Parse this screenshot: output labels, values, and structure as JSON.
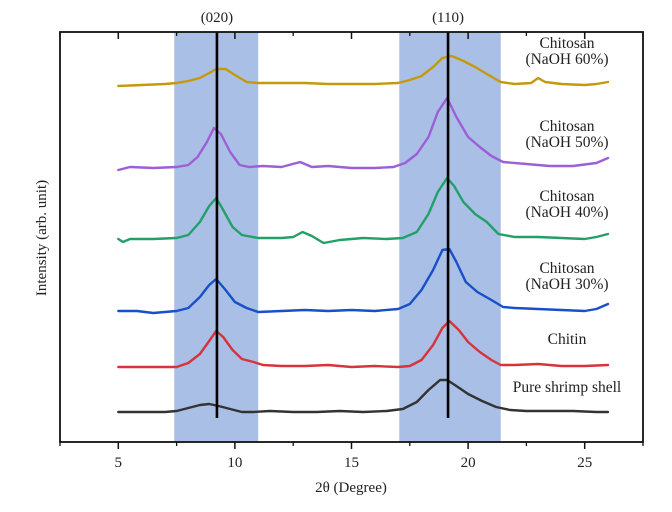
{
  "chart_data": {
    "type": "line",
    "title": "",
    "xlabel": "2θ (Degree)",
    "ylabel": "Intensity (arb. unit)",
    "xlim": [
      2.5,
      27.5
    ],
    "ylim": [
      0,
      410
    ],
    "x_ticks": [
      5,
      10,
      15,
      20,
      25
    ],
    "x_tick_labels": [
      "5",
      "10",
      "15",
      "20",
      "25"
    ],
    "x_minor_ticks": [
      2.5,
      7.5,
      12.5,
      17.5,
      22.5,
      27.5
    ],
    "y_ticks_shown": false,
    "grid": false,
    "legend": "inline-labels-right",
    "highlight_bands": [
      {
        "from": 7.4,
        "to": 11.0,
        "color": "#a9bfe6"
      },
      {
        "from": 17.05,
        "to": 21.4,
        "color": "#a9bfe6"
      }
    ],
    "reference_lines": [
      {
        "x": 9.23,
        "label": "(020)",
        "color": "#000000"
      },
      {
        "x": 19.14,
        "label": "(110)",
        "color": "#000000"
      }
    ],
    "series": [
      {
        "name": "Pure shrimp shell",
        "label_lines": [
          "Pure shrimp shell"
        ],
        "color": "#333333",
        "baseline": 30,
        "points": [
          [
            5.0,
            30
          ],
          [
            6.0,
            30
          ],
          [
            7.0,
            30
          ],
          [
            7.5,
            31
          ],
          [
            8.0,
            34
          ],
          [
            8.5,
            37
          ],
          [
            8.9,
            38
          ],
          [
            9.3,
            36
          ],
          [
            9.8,
            33
          ],
          [
            10.3,
            30
          ],
          [
            10.8,
            30
          ],
          [
            11.5,
            31
          ],
          [
            12.5,
            30
          ],
          [
            13.5,
            30
          ],
          [
            14.5,
            31
          ],
          [
            15.5,
            30
          ],
          [
            16.5,
            31
          ],
          [
            17.2,
            33
          ],
          [
            17.8,
            40
          ],
          [
            18.3,
            52
          ],
          [
            18.8,
            62
          ],
          [
            19.1,
            62
          ],
          [
            19.5,
            56
          ],
          [
            20.0,
            48
          ],
          [
            20.6,
            41
          ],
          [
            21.2,
            35
          ],
          [
            21.8,
            32
          ],
          [
            22.5,
            31
          ],
          [
            23.5,
            31
          ],
          [
            24.5,
            31
          ],
          [
            25.5,
            30
          ],
          [
            26.0,
            30
          ]
        ]
      },
      {
        "name": "Chitin",
        "label_lines": [
          "Chitin"
        ],
        "color": "#d6343a",
        "baseline": 75,
        "points": [
          [
            5.0,
            75
          ],
          [
            6.0,
            75
          ],
          [
            7.0,
            75
          ],
          [
            7.5,
            75
          ],
          [
            8.0,
            79
          ],
          [
            8.5,
            88
          ],
          [
            8.9,
            101
          ],
          [
            9.2,
            111
          ],
          [
            9.5,
            105
          ],
          [
            9.9,
            92
          ],
          [
            10.3,
            83
          ],
          [
            10.8,
            80
          ],
          [
            11.2,
            77
          ],
          [
            12.0,
            76
          ],
          [
            13.0,
            76
          ],
          [
            14.0,
            77
          ],
          [
            15.0,
            75
          ],
          [
            16.0,
            76
          ],
          [
            17.0,
            75
          ],
          [
            17.5,
            76
          ],
          [
            18.0,
            82
          ],
          [
            18.5,
            97
          ],
          [
            18.9,
            114
          ],
          [
            19.2,
            121
          ],
          [
            19.6,
            112
          ],
          [
            20.0,
            100
          ],
          [
            20.5,
            90
          ],
          [
            21.0,
            82
          ],
          [
            21.4,
            77
          ],
          [
            22.0,
            77
          ],
          [
            23.0,
            78
          ],
          [
            24.0,
            76
          ],
          [
            25.0,
            76
          ],
          [
            26.0,
            77
          ]
        ]
      },
      {
        "name": "Chitosan (NaOH 30%)",
        "label_lines": [
          "Chitosan",
          "(NaOH 30%)"
        ],
        "color": "#1750c8",
        "baseline": 131,
        "points": [
          [
            5.0,
            131
          ],
          [
            5.8,
            131
          ],
          [
            6.5,
            129
          ],
          [
            7.0,
            130
          ],
          [
            7.5,
            131
          ],
          [
            8.0,
            134
          ],
          [
            8.5,
            145
          ],
          [
            8.9,
            157
          ],
          [
            9.2,
            163
          ],
          [
            9.6,
            152
          ],
          [
            10.0,
            140
          ],
          [
            10.5,
            134
          ],
          [
            11.0,
            130
          ],
          [
            12.0,
            131
          ],
          [
            13.0,
            132
          ],
          [
            14.0,
            131
          ],
          [
            15.0,
            132
          ],
          [
            16.0,
            131
          ],
          [
            17.0,
            133
          ],
          [
            17.5,
            138
          ],
          [
            18.0,
            152
          ],
          [
            18.5,
            172
          ],
          [
            18.9,
            192
          ],
          [
            19.2,
            193
          ],
          [
            19.5,
            180
          ],
          [
            19.9,
            160
          ],
          [
            20.4,
            150
          ],
          [
            21.0,
            142
          ],
          [
            21.5,
            135
          ],
          [
            22.0,
            134
          ],
          [
            23.0,
            133
          ],
          [
            24.0,
            132
          ],
          [
            25.0,
            131
          ],
          [
            25.5,
            133
          ],
          [
            26.0,
            138
          ]
        ]
      },
      {
        "name": "Chitosan (NaOH 40%)",
        "label_lines": [
          "Chitosan",
          "(NaOH 40%)"
        ],
        "color": "#22a067",
        "baseline": 203,
        "points": [
          [
            5.0,
            203
          ],
          [
            5.2,
            200
          ],
          [
            5.5,
            203
          ],
          [
            6.5,
            203
          ],
          [
            7.5,
            204
          ],
          [
            8.0,
            207
          ],
          [
            8.5,
            220
          ],
          [
            8.9,
            236
          ],
          [
            9.2,
            244
          ],
          [
            9.5,
            232
          ],
          [
            9.9,
            215
          ],
          [
            10.3,
            207
          ],
          [
            11.0,
            204
          ],
          [
            12.0,
            204
          ],
          [
            12.5,
            205
          ],
          [
            12.9,
            210
          ],
          [
            13.3,
            206
          ],
          [
            13.8,
            199
          ],
          [
            14.5,
            202
          ],
          [
            15.5,
            204
          ],
          [
            16.5,
            203
          ],
          [
            17.2,
            204
          ],
          [
            17.8,
            210
          ],
          [
            18.3,
            228
          ],
          [
            18.7,
            250
          ],
          [
            19.1,
            264
          ],
          [
            19.4,
            256
          ],
          [
            19.8,
            240
          ],
          [
            20.3,
            228
          ],
          [
            20.8,
            220
          ],
          [
            21.3,
            208
          ],
          [
            22.0,
            205
          ],
          [
            23.0,
            205
          ],
          [
            24.0,
            204
          ],
          [
            25.0,
            203
          ],
          [
            25.5,
            205
          ],
          [
            26.0,
            208
          ]
        ]
      },
      {
        "name": "Chitosan (NaOH 50%)",
        "label_lines": [
          "Chitosan",
          "(NaOH 50%)"
        ],
        "color": "#9d5fd6",
        "baseline": 273,
        "points": [
          [
            5.0,
            272
          ],
          [
            5.5,
            275
          ],
          [
            6.5,
            274
          ],
          [
            7.5,
            275
          ],
          [
            8.0,
            277
          ],
          [
            8.4,
            285
          ],
          [
            8.8,
            300
          ],
          [
            9.1,
            314
          ],
          [
            9.4,
            308
          ],
          [
            9.8,
            290
          ],
          [
            10.2,
            277
          ],
          [
            10.6,
            275
          ],
          [
            11.2,
            276
          ],
          [
            12.0,
            275
          ],
          [
            12.8,
            280
          ],
          [
            13.3,
            275
          ],
          [
            14.0,
            276
          ],
          [
            15.0,
            274
          ],
          [
            16.0,
            274
          ],
          [
            16.8,
            275
          ],
          [
            17.3,
            279
          ],
          [
            17.8,
            288
          ],
          [
            18.3,
            305
          ],
          [
            18.7,
            330
          ],
          [
            19.1,
            344
          ],
          [
            19.5,
            325
          ],
          [
            20.0,
            305
          ],
          [
            20.5,
            295
          ],
          [
            21.0,
            286
          ],
          [
            21.5,
            280
          ],
          [
            22.5,
            278
          ],
          [
            23.5,
            276
          ],
          [
            24.5,
            276
          ],
          [
            25.5,
            279
          ],
          [
            26.0,
            284
          ]
        ]
      },
      {
        "name": "Chitosan (NaOH 60%)",
        "label_lines": [
          "Chitosan",
          "(NaOH 60%)"
        ],
        "color": "#c49a0c",
        "baseline": 356,
        "points": [
          [
            5.0,
            356
          ],
          [
            6.0,
            357
          ],
          [
            7.0,
            358
          ],
          [
            7.5,
            359
          ],
          [
            8.0,
            361
          ],
          [
            8.5,
            364
          ],
          [
            8.9,
            369
          ],
          [
            9.2,
            373
          ],
          [
            9.6,
            373
          ],
          [
            10.0,
            367
          ],
          [
            10.5,
            360
          ],
          [
            11.0,
            359
          ],
          [
            12.0,
            359
          ],
          [
            13.0,
            359
          ],
          [
            14.0,
            358
          ],
          [
            15.0,
            358
          ],
          [
            16.0,
            358
          ],
          [
            17.0,
            359
          ],
          [
            17.5,
            362
          ],
          [
            18.0,
            366
          ],
          [
            18.5,
            375
          ],
          [
            18.9,
            384
          ],
          [
            19.3,
            386
          ],
          [
            19.8,
            381
          ],
          [
            20.3,
            375
          ],
          [
            20.8,
            368
          ],
          [
            21.4,
            360
          ],
          [
            22.0,
            358
          ],
          [
            22.7,
            359
          ],
          [
            23.0,
            364
          ],
          [
            23.3,
            360
          ],
          [
            24.0,
            358
          ],
          [
            25.0,
            357
          ],
          [
            25.5,
            358
          ],
          [
            26.0,
            360
          ]
        ]
      }
    ]
  }
}
